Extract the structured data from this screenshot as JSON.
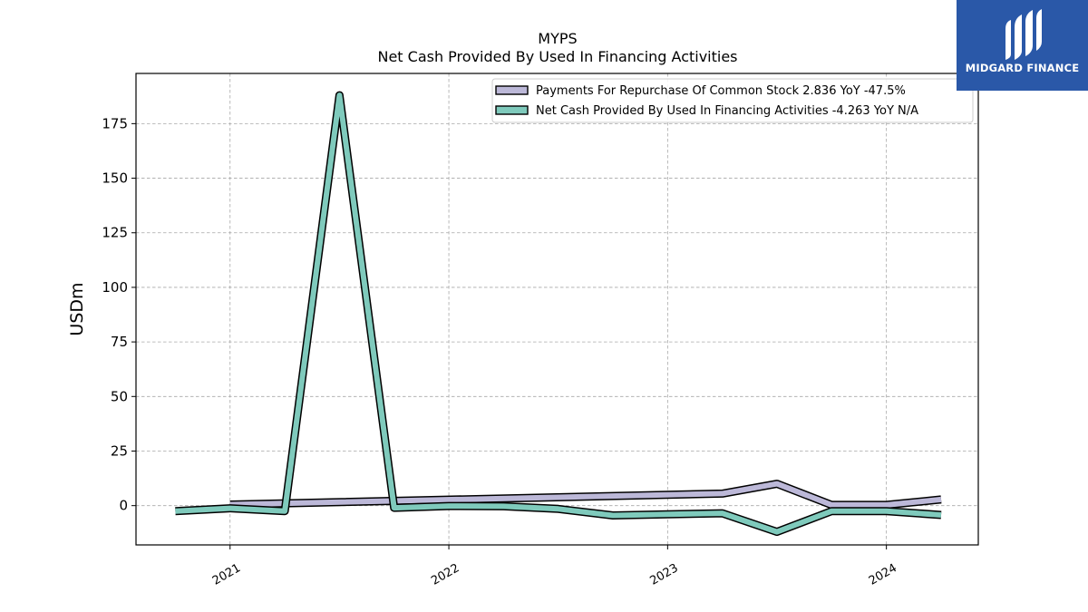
{
  "chart_data": {
    "type": "line",
    "title": "MYPS",
    "subtitle": "Net Cash Provided By Used In Financing Activities",
    "ylabel": "USDm",
    "xlabel": "",
    "xlim": [
      2020.57,
      2024.42
    ],
    "ylim": [
      -18,
      198
    ],
    "yticks": [
      0,
      25,
      50,
      75,
      100,
      125,
      150,
      175
    ],
    "xticks": [
      {
        "value": 2021.0,
        "label": "2021"
      },
      {
        "value": 2022.0,
        "label": "2022"
      },
      {
        "value": 2023.0,
        "label": "2023"
      },
      {
        "value": 2024.0,
        "label": "2024"
      }
    ],
    "grid": true,
    "legend_position": "top-right",
    "series": [
      {
        "name": "Payments For Repurchase Of Common Stock  2.836 YoY -47.5%",
        "color": "#bcb8d8",
        "x": [
          2021.0,
          2023.25,
          2023.5,
          2023.75,
          2024.0,
          2024.25
        ],
        "values": [
          0.5,
          5.5,
          10.0,
          0.3,
          0.3,
          2.8
        ]
      },
      {
        "name": "Net Cash Provided By Used In Financing Activities  -4.263 YoY N/A",
        "color": "#7fcabc",
        "x": [
          2020.75,
          2021.0,
          2021.25,
          2021.5,
          2021.75,
          2022.0,
          2022.25,
          2022.5,
          2022.75,
          2023.0,
          2023.25,
          2023.5,
          2023.75,
          2024.0,
          2024.25
        ],
        "values": [
          -2.5,
          -1.2,
          -2.5,
          188.0,
          -1.0,
          -0.2,
          -0.3,
          -1.5,
          -4.5,
          -4.0,
          -3.5,
          -12.0,
          -2.5,
          -2.5,
          -4.3
        ]
      }
    ]
  },
  "logo": {
    "text": "MIDGARD FINANCE",
    "icon": "midgard-logo-icon",
    "background": "#2a58a8"
  }
}
